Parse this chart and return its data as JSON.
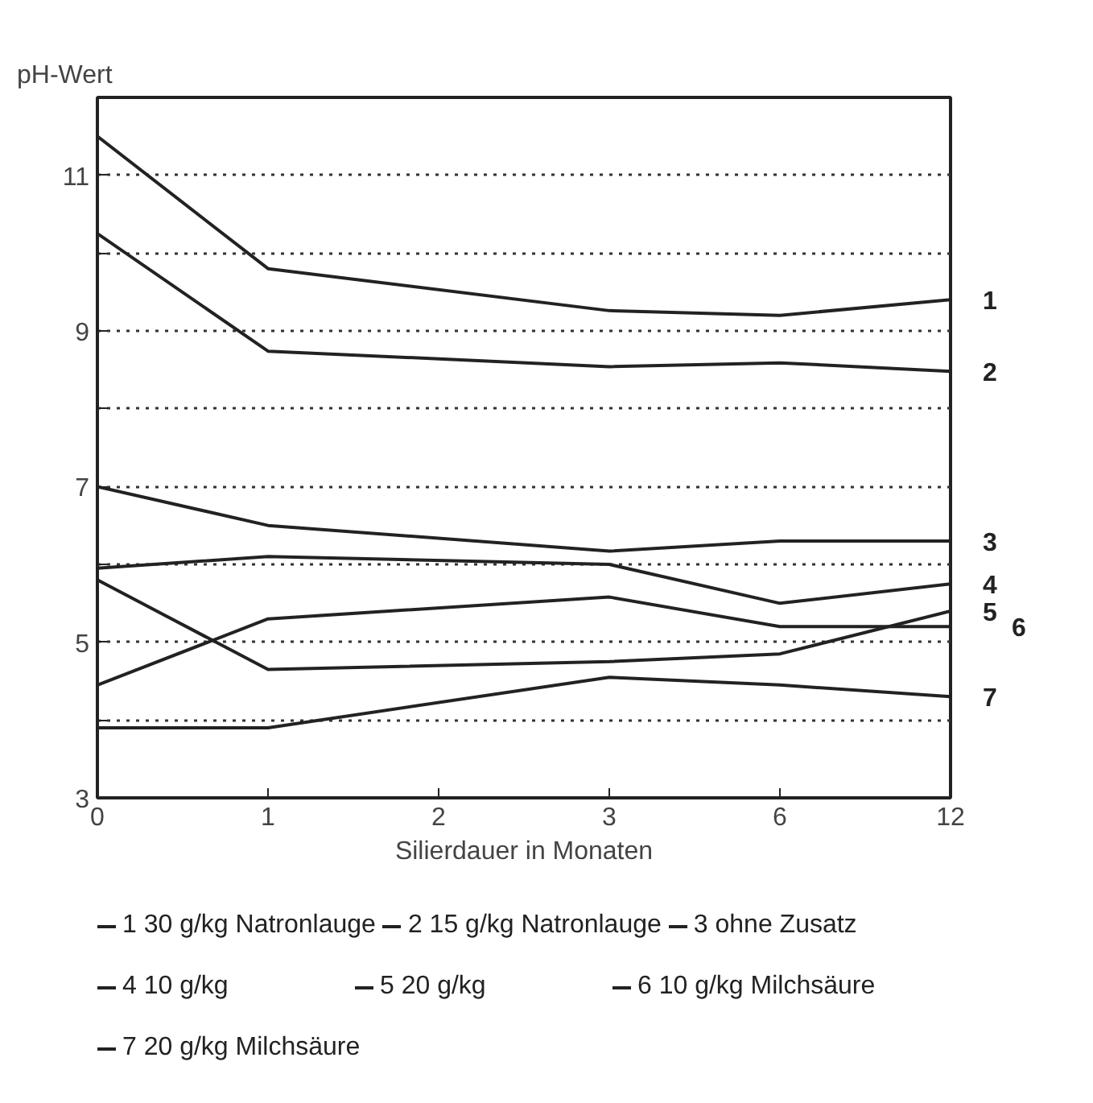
{
  "chart_data": {
    "type": "line",
    "ylabel": "pH-Wert",
    "xlabel": "Silierdauer in Monaten",
    "categories": [
      "0",
      "1",
      "2",
      "3",
      "6",
      "12"
    ],
    "ylim": [
      3,
      12
    ],
    "yticks": [
      3,
      {
        "value": 4,
        "label": null
      },
      5,
      {
        "value": 6,
        "label": null
      },
      7,
      {
        "value": 8,
        "label": null
      },
      9,
      {
        "value": 10,
        "label": null
      },
      11
    ],
    "grid": "y",
    "line_style": "solid",
    "legend": "bottom",
    "series": [
      {
        "name": "1 30 g/kg Natronlauge",
        "color": "#222222",
        "x": [
          "0",
          "1",
          "3",
          "6",
          "12"
        ],
        "values": [
          11.5,
          9.8,
          9.26,
          9.2,
          9.4
        ]
      },
      {
        "name": "2 15 g/kg Natronlauge",
        "color": "#222222",
        "x": [
          "0",
          "1",
          "3",
          "6",
          "12"
        ],
        "values": [
          10.25,
          8.74,
          8.54,
          8.59,
          8.48
        ]
      },
      {
        "name": "3 ohne Zusatz",
        "color": "#222222",
        "x": [
          "0",
          "1",
          "3",
          "6",
          "12"
        ],
        "values": [
          7.0,
          6.5,
          6.17,
          6.3,
          6.3
        ]
      },
      {
        "name": "4 10 g/kg",
        "color": "#222222",
        "x": [
          "0",
          "1",
          "3",
          "6",
          "12"
        ],
        "values": [
          5.95,
          6.1,
          6.0,
          5.5,
          5.75
        ]
      },
      {
        "name": "5 20 g/kg",
        "color": "#222222",
        "x": [
          "0",
          "1",
          "3",
          "6",
          "12"
        ],
        "values": [
          5.8,
          4.65,
          4.75,
          4.85,
          5.4
        ]
      },
      {
        "name": "6 10 g/kg Milchsäure",
        "color": "#222222",
        "x": [
          "0",
          "1",
          "3",
          "6",
          "12"
        ],
        "values": [
          4.45,
          5.3,
          5.58,
          5.2,
          5.2
        ]
      },
      {
        "name": "7 20 g/kg Milchsäure",
        "color": "#222222",
        "x": [
          "0",
          "1",
          "3",
          "6",
          "12"
        ],
        "values": [
          3.9,
          3.9,
          4.55,
          4.45,
          4.3
        ]
      }
    ],
    "annotations": [
      {
        "text": "1",
        "x": "12",
        "y": 9.4
      },
      {
        "text": "2",
        "x": "12",
        "y": 8.48
      },
      {
        "text": "3",
        "x": "12",
        "y": 6.3
      },
      {
        "text": "4",
        "x": "12",
        "y": 5.75
      },
      {
        "text": "5",
        "x": "12",
        "y": 5.4
      },
      {
        "text": "6",
        "x": "12",
        "y": 5.2
      },
      {
        "text": "7",
        "x": "12",
        "y": 4.3
      }
    ]
  }
}
